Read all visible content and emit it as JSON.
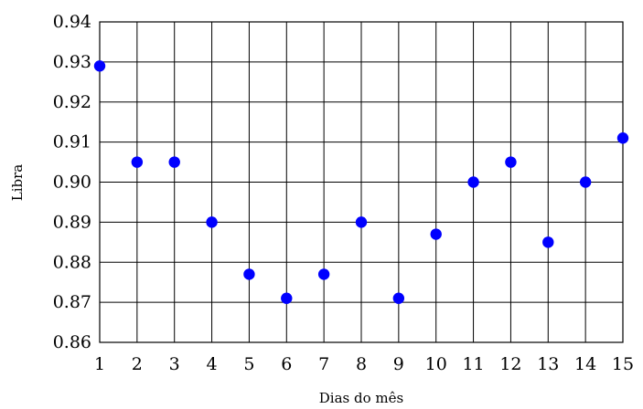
{
  "chart_data": {
    "type": "scatter",
    "title": "",
    "xlabel": "Dias do mês",
    "ylabel": "Libra",
    "xlim": [
      1,
      15
    ],
    "ylim": [
      0.86,
      0.94
    ],
    "x_ticks": [
      1,
      2,
      3,
      4,
      5,
      6,
      7,
      8,
      9,
      10,
      11,
      12,
      13,
      14,
      15
    ],
    "y_ticks": [
      "0.86",
      "0.87",
      "0.88",
      "0.89",
      "0.90",
      "0.91",
      "0.92",
      "0.93",
      "0.94"
    ],
    "grid": true,
    "marker_color": "#0000ff",
    "series": [
      {
        "x": [
          1,
          2,
          3,
          4,
          5,
          6,
          7,
          8,
          9,
          10,
          11,
          12,
          13,
          14,
          15
        ],
        "y": [
          0.929,
          0.905,
          0.905,
          0.89,
          0.877,
          0.871,
          0.877,
          0.89,
          0.871,
          0.887,
          0.9,
          0.905,
          0.885,
          0.9,
          0.911
        ]
      }
    ]
  }
}
